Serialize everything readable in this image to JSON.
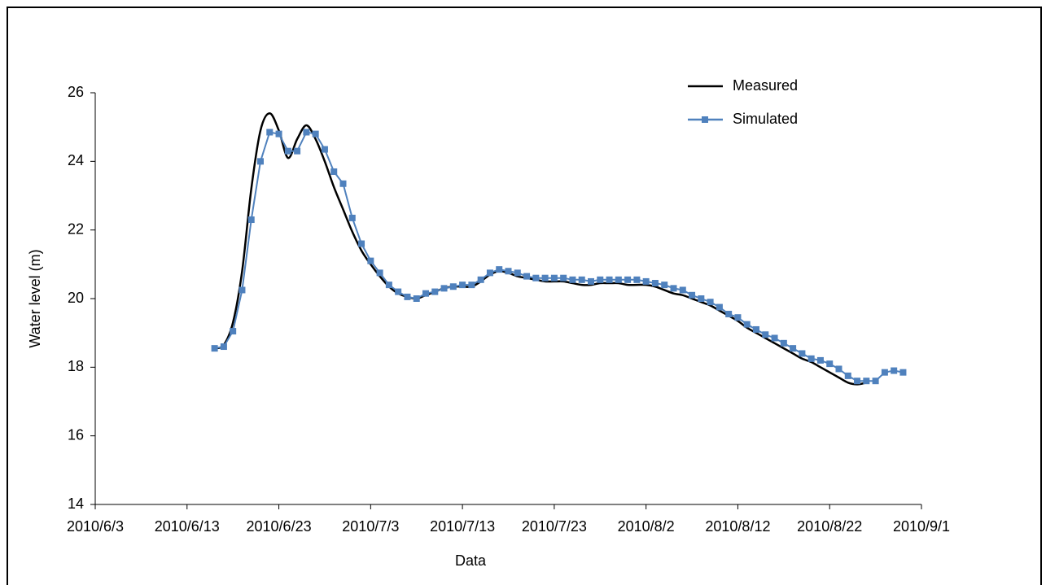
{
  "chart_data": {
    "type": "line",
    "xlabel": "Data",
    "ylabel": "Water level (m)",
    "x": [
      "2010/6/16",
      "2010/6/17",
      "2010/6/18",
      "2010/6/19",
      "2010/6/20",
      "2010/6/21",
      "2010/6/22",
      "2010/6/23",
      "2010/6/24",
      "2010/6/25",
      "2010/6/26",
      "2010/6/27",
      "2010/6/28",
      "2010/6/29",
      "2010/6/30",
      "2010/7/1",
      "2010/7/2",
      "2010/7/3",
      "2010/7/4",
      "2010/7/5",
      "2010/7/6",
      "2010/7/7",
      "2010/7/8",
      "2010/7/9",
      "2010/7/10",
      "2010/7/11",
      "2010/7/12",
      "2010/7/13",
      "2010/7/14",
      "2010/7/15",
      "2010/7/16",
      "2010/7/17",
      "2010/7/18",
      "2010/7/19",
      "2010/7/20",
      "2010/7/21",
      "2010/7/22",
      "2010/7/23",
      "2010/7/24",
      "2010/7/25",
      "2010/7/26",
      "2010/7/27",
      "2010/7/28",
      "2010/7/29",
      "2010/7/30",
      "2010/7/31",
      "2010/8/1",
      "2010/8/2",
      "2010/8/3",
      "2010/8/4",
      "2010/8/5",
      "2010/8/6",
      "2010/8/7",
      "2010/8/8",
      "2010/8/9",
      "2010/8/10",
      "2010/8/11",
      "2010/8/12",
      "2010/8/13",
      "2010/8/14",
      "2010/8/15",
      "2010/8/16",
      "2010/8/17",
      "2010/8/18",
      "2010/8/19",
      "2010/8/20",
      "2010/8/21",
      "2010/8/22",
      "2010/8/23",
      "2010/8/24",
      "2010/8/25",
      "2010/8/26",
      "2010/8/27",
      "2010/8/28",
      "2010/8/29",
      "2010/8/30"
    ],
    "series": [
      {
        "name": "Measured",
        "color": "#000000",
        "marker": false,
        "values": [
          18.55,
          18.65,
          19.3,
          20.8,
          23.2,
          24.9,
          25.4,
          24.9,
          24.1,
          24.65,
          25.05,
          24.65,
          24.0,
          23.25,
          22.6,
          21.95,
          21.4,
          21.0,
          20.65,
          20.35,
          20.15,
          20.05,
          20.0,
          20.1,
          20.2,
          20.3,
          20.35,
          20.35,
          20.35,
          20.5,
          20.7,
          20.8,
          20.75,
          20.65,
          20.6,
          20.55,
          20.5,
          20.5,
          20.5,
          20.45,
          20.4,
          20.4,
          20.45,
          20.45,
          20.45,
          20.4,
          20.4,
          20.4,
          20.35,
          20.25,
          20.15,
          20.1,
          20.0,
          19.9,
          19.8,
          19.65,
          19.5,
          19.35,
          19.15,
          19.0,
          18.85,
          18.7,
          18.55,
          18.4,
          18.25,
          18.15,
          18.0,
          17.85,
          17.7,
          17.55,
          17.5,
          17.55,
          null,
          null,
          null,
          null
        ]
      },
      {
        "name": "Simulated",
        "color": "#4f81bd",
        "marker": true,
        "values": [
          18.55,
          18.6,
          19.05,
          20.25,
          22.3,
          24.0,
          24.85,
          24.8,
          24.3,
          24.3,
          24.85,
          24.8,
          24.35,
          23.7,
          23.35,
          22.35,
          21.6,
          21.1,
          20.75,
          20.4,
          20.2,
          20.05,
          20.0,
          20.15,
          20.2,
          20.3,
          20.35,
          20.4,
          20.4,
          20.55,
          20.75,
          20.85,
          20.8,
          20.75,
          20.65,
          20.6,
          20.6,
          20.6,
          20.6,
          20.55,
          20.55,
          20.5,
          20.55,
          20.55,
          20.55,
          20.55,
          20.55,
          20.5,
          20.45,
          20.4,
          20.3,
          20.25,
          20.1,
          20.0,
          19.9,
          19.75,
          19.55,
          19.45,
          19.25,
          19.1,
          18.95,
          18.85,
          18.7,
          18.55,
          18.4,
          18.25,
          18.2,
          18.1,
          17.95,
          17.75,
          17.6,
          17.6,
          17.6,
          17.85,
          17.9,
          17.85
        ]
      }
    ],
    "xlim": [
      "2010/6/3",
      "2010/9/1"
    ],
    "xticks": [
      "2010/6/3",
      "2010/6/13",
      "2010/6/23",
      "2010/7/3",
      "2010/7/13",
      "2010/7/23",
      "2010/8/2",
      "2010/8/12",
      "2010/8/22",
      "2010/9/1"
    ],
    "ylim": [
      14,
      26
    ],
    "yticks": [
      14,
      16,
      18,
      20,
      22,
      24,
      26
    ],
    "grid": false,
    "legend": "upper right"
  }
}
